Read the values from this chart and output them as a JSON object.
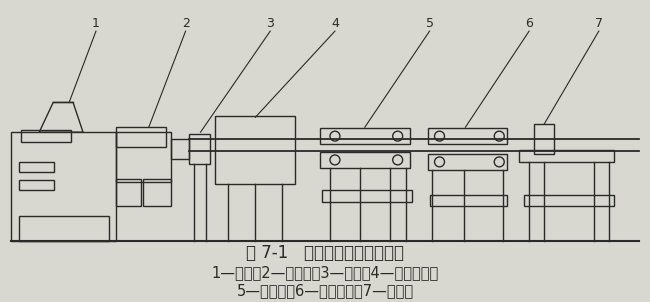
{
  "bg_color": "#d8d8d0",
  "line_color": "#2a2a2a",
  "title_line1": "图 7-1   硬管挤出成型工艺流程",
  "caption_line2": "1—料斗；2—加热器；3—机头；4—定型装置；",
  "caption_line3": "5—冷却槽；6—牵引装置；7—切割机",
  "title_fontsize": 12,
  "caption_fontsize": 10.5
}
